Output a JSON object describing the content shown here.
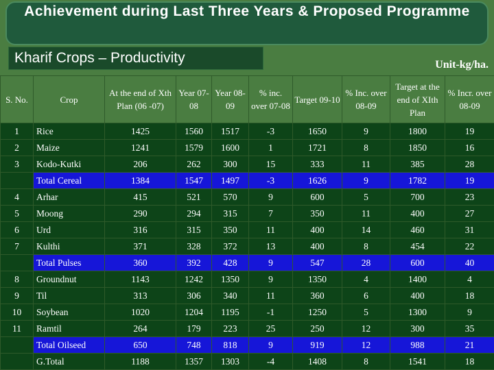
{
  "title": "Achievement during Last Three Years & Proposed Programme",
  "subtitle": "Kharif Crops – Productivity",
  "unit": "Unit-kg/ha.",
  "columns": [
    "S. No.",
    "Crop",
    "At the end of Xth Plan (06 -07)",
    "Year 07-08",
    "Year 08-09",
    "% inc. over 07-08",
    "Target 09-10",
    "% Inc. over 08-09",
    "Target at the end of XIth Plan",
    "% Incr. over 08-09"
  ],
  "rows": [
    {
      "type": "row",
      "cells": [
        "1",
        "Rice",
        "1425",
        "1560",
        "1517",
        "-3",
        "1650",
        "9",
        "1800",
        "19"
      ]
    },
    {
      "type": "row",
      "cells": [
        "2",
        "Maize",
        "1241",
        "1579",
        "1600",
        "1",
        "1721",
        "8",
        "1850",
        "16"
      ]
    },
    {
      "type": "row",
      "cells": [
        "3",
        "Kodo-Kutki",
        "206",
        "262",
        "300",
        "15",
        "333",
        "11",
        "385",
        "28"
      ]
    },
    {
      "type": "total",
      "cells": [
        "",
        "Total Cereal",
        "1384",
        "1547",
        "1497",
        "-3",
        "1626",
        "9",
        "1782",
        "19"
      ]
    },
    {
      "type": "row",
      "cells": [
        "4",
        "Arhar",
        "415",
        "521",
        "570",
        "9",
        "600",
        "5",
        "700",
        "23"
      ]
    },
    {
      "type": "row",
      "cells": [
        "5",
        "Moong",
        "290",
        "294",
        "315",
        "7",
        "350",
        "11",
        "400",
        "27"
      ]
    },
    {
      "type": "row",
      "cells": [
        "6",
        "Urd",
        "316",
        "315",
        "350",
        "11",
        "400",
        "14",
        "460",
        "31"
      ]
    },
    {
      "type": "row",
      "cells": [
        "7",
        "Kulthi",
        "371",
        "328",
        "372",
        "13",
        "400",
        "8",
        "454",
        "22"
      ]
    },
    {
      "type": "total",
      "cells": [
        "",
        "Total Pulses",
        "360",
        "392",
        "428",
        "9",
        "547",
        "28",
        "600",
        "40"
      ]
    },
    {
      "type": "row",
      "cells": [
        "8",
        "Groundnut",
        "1143",
        "1242",
        "1350",
        "9",
        "1350",
        "4",
        "1400",
        "4"
      ]
    },
    {
      "type": "row",
      "cells": [
        "9",
        "Til",
        "313",
        "306",
        "340",
        "11",
        "360",
        "6",
        "400",
        "18"
      ]
    },
    {
      "type": "row",
      "cells": [
        "10",
        "Soybean",
        "1020",
        "1204",
        "1195",
        "-1",
        "1250",
        "5",
        "1300",
        "9"
      ]
    },
    {
      "type": "row",
      "cells": [
        "11",
        "Ramtil",
        "264",
        "179",
        "223",
        "25",
        "250",
        "12",
        "300",
        "35"
      ]
    },
    {
      "type": "total",
      "cells": [
        "",
        "Total Oilseed",
        "650",
        "748",
        "818",
        "9",
        "919",
        "12",
        "988",
        "21"
      ]
    },
    {
      "type": "row",
      "cells": [
        "",
        "G.Total",
        "1188",
        "1357",
        "1303",
        "-4",
        "1408",
        "8",
        "1541",
        "18"
      ]
    }
  ],
  "colors": {
    "background": "#4a7d41",
    "title_bar": "#1f5a3c",
    "row_fill": "#0d4418",
    "total_row_fill": "#1616d8",
    "text": "#ffffff"
  }
}
